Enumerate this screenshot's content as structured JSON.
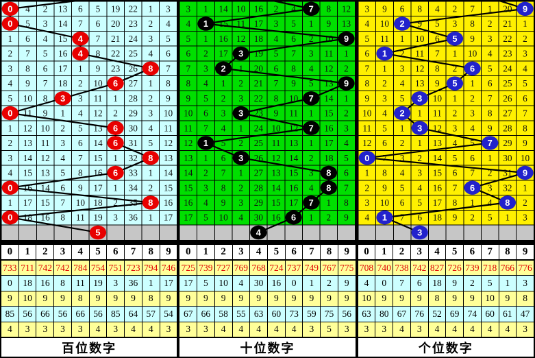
{
  "chart_data": {
    "type": "table",
    "title": "3D lottery digit trend chart (hundreds / tens / units)",
    "digit_header": [
      "0",
      "1",
      "2",
      "3",
      "4",
      "5",
      "6",
      "7",
      "8",
      "9"
    ],
    "colors": {
      "hundreds_bg": "#CCFFFF",
      "tens_bg": "#00DF00",
      "units_bg": "#FFF000",
      "pending_row_bg": "#C6C6C6",
      "grid_line": "#000000",
      "trend_line": "#000000",
      "red_ball": "#E80000",
      "black_ball": "#000000",
      "blue_ball": "#2222CC",
      "stats_yellow": "#FFFF99",
      "stats_cyan": "#CCFFFF",
      "stats_red_text": "#E00000"
    },
    "panels": [
      {
        "name": "hundreds",
        "footer_label": "百位数字",
        "bg": "#CCFFFF",
        "ball_color": "#E80000",
        "prev_col": 7,
        "rows": [
          {
            "ball": 0,
            "cells": [
              "0",
              "4",
              "2",
              "13",
              "6",
              "5",
              "19",
              "22",
              "1",
              "3"
            ]
          },
          {
            "ball": 0,
            "cells": [
              "0",
              "5",
              "3",
              "14",
              "7",
              "6",
              "20",
              "23",
              "2",
              "4"
            ]
          },
          {
            "ball": 4,
            "cells": [
              "1",
              "6",
              "4",
              "15",
              "4",
              "7",
              "21",
              "24",
              "3",
              "5"
            ]
          },
          {
            "ball": 4,
            "cells": [
              "2",
              "7",
              "5",
              "16",
              "4",
              "8",
              "22",
              "25",
              "4",
              "6"
            ]
          },
          {
            "ball": 8,
            "cells": [
              "3",
              "8",
              "6",
              "17",
              "1",
              "9",
              "23",
              "26",
              "8",
              "7"
            ]
          },
          {
            "ball": 6,
            "cells": [
              "4",
              "9",
              "7",
              "18",
              "2",
              "10",
              "6",
              "27",
              "1",
              "8"
            ]
          },
          {
            "ball": 3,
            "cells": [
              "5",
              "10",
              "8",
              "3",
              "3",
              "11",
              "1",
              "28",
              "2",
              "9"
            ]
          },
          {
            "ball": 0,
            "cells": [
              "0",
              "11",
              "9",
              "1",
              "4",
              "12",
              "2",
              "29",
              "3",
              "10"
            ]
          },
          {
            "ball": 6,
            "cells": [
              "1",
              "12",
              "10",
              "2",
              "5",
              "13",
              "6",
              "30",
              "4",
              "11"
            ]
          },
          {
            "ball": 6,
            "cells": [
              "2",
              "13",
              "11",
              "3",
              "6",
              "14",
              "6",
              "31",
              "5",
              "12"
            ]
          },
          {
            "ball": 8,
            "cells": [
              "3",
              "14",
              "12",
              "4",
              "7",
              "15",
              "1",
              "32",
              "8",
              "13"
            ]
          },
          {
            "ball": 6,
            "cells": [
              "4",
              "15",
              "13",
              "5",
              "8",
              "16",
              "6",
              "33",
              "1",
              "14"
            ]
          },
          {
            "ball": 0,
            "cells": [
              "0",
              "16",
              "14",
              "6",
              "9",
              "17",
              "1",
              "34",
              "2",
              "15"
            ]
          },
          {
            "ball": 8,
            "cells": [
              "1",
              "17",
              "15",
              "7",
              "10",
              "18",
              "2",
              "35",
              "8",
              "16"
            ]
          },
          {
            "ball": 0,
            "cells": [
              "0",
              "18",
              "16",
              "8",
              "11",
              "19",
              "3",
              "36",
              "1",
              "17"
            ]
          }
        ],
        "next_ball": {
          "col": 5,
          "value": "5"
        },
        "stats": [
          {
            "bg": "#FFFF99",
            "fg": "#E00000",
            "values": [
              "733",
              "711",
              "742",
              "742",
              "784",
              "754",
              "751",
              "723",
              "794",
              "746"
            ]
          },
          {
            "bg": "#CCFFFF",
            "fg": "#000000",
            "values": [
              "0",
              "18",
              "16",
              "8",
              "11",
              "19",
              "3",
              "36",
              "1",
              "17"
            ]
          },
          {
            "bg": "#FFFF99",
            "fg": "#000000",
            "values": [
              "9",
              "10",
              "9",
              "9",
              "8",
              "9",
              "9",
              "9",
              "8",
              "9"
            ]
          },
          {
            "bg": "#CCFFFF",
            "fg": "#000000",
            "values": [
              "85",
              "56",
              "66",
              "56",
              "66",
              "56",
              "85",
              "64",
              "57",
              "54"
            ]
          },
          {
            "bg": "#FFFF99",
            "fg": "#000000",
            "values": [
              "4",
              "3",
              "3",
              "3",
              "3",
              "4",
              "3",
              "4",
              "4",
              "3"
            ]
          }
        ]
      },
      {
        "name": "tens",
        "footer_label": "十位数字",
        "bg": "#00DF00",
        "ball_color": "#000000",
        "prev_col": 3,
        "rows": [
          {
            "ball": 7,
            "cells": [
              "3",
              "1",
              "14",
              "10",
              "16",
              "2",
              "4",
              "7",
              "8",
              "12"
            ]
          },
          {
            "ball": 1,
            "cells": [
              "4",
              "1",
              "15",
              "11",
              "17",
              "3",
              "5",
              "1",
              "9",
              "13"
            ]
          },
          {
            "ball": 9,
            "cells": [
              "5",
              "1",
              "16",
              "12",
              "18",
              "4",
              "6",
              "2",
              "10",
              "9"
            ]
          },
          {
            "ball": 3,
            "cells": [
              "6",
              "2",
              "17",
              "3",
              "19",
              "5",
              "7",
              "3",
              "11",
              "1"
            ]
          },
          {
            "ball": 2,
            "cells": [
              "7",
              "3",
              "2",
              "1",
              "20",
              "6",
              "8",
              "4",
              "12",
              "2"
            ]
          },
          {
            "ball": 9,
            "cells": [
              "8",
              "4",
              "1",
              "2",
              "21",
              "7",
              "9",
              "5",
              "13",
              "9"
            ]
          },
          {
            "ball": 7,
            "cells": [
              "9",
              "5",
              "2",
              "3",
              "22",
              "8",
              "10",
              "7",
              "14",
              "1"
            ]
          },
          {
            "ball": 3,
            "cells": [
              "10",
              "6",
              "3",
              "3",
              "23",
              "9",
              "11",
              "1",
              "15",
              "2"
            ]
          },
          {
            "ball": 7,
            "cells": [
              "11",
              "7",
              "4",
              "1",
              "24",
              "10",
              "12",
              "7",
              "16",
              "3"
            ]
          },
          {
            "ball": 1,
            "cells": [
              "12",
              "1",
              "5",
              "2",
              "25",
              "11",
              "13",
              "1",
              "17",
              "4"
            ]
          },
          {
            "ball": 3,
            "cells": [
              "13",
              "1",
              "6",
              "3",
              "26",
              "12",
              "14",
              "2",
              "18",
              "5"
            ]
          },
          {
            "ball": 8,
            "cells": [
              "14",
              "2",
              "7",
              "1",
              "27",
              "13",
              "15",
              "3",
              "8",
              "6"
            ]
          },
          {
            "ball": 8,
            "cells": [
              "15",
              "3",
              "8",
              "2",
              "28",
              "14",
              "16",
              "4",
              "8",
              "7"
            ]
          },
          {
            "ball": 7,
            "cells": [
              "16",
              "4",
              "9",
              "3",
              "29",
              "15",
              "17",
              "7",
              "1",
              "8"
            ]
          },
          {
            "ball": 6,
            "cells": [
              "17",
              "5",
              "10",
              "4",
              "30",
              "16",
              "6",
              "1",
              "2",
              "9"
            ]
          }
        ],
        "next_ball": {
          "col": 4,
          "value": "4"
        },
        "stats": [
          {
            "bg": "#FFFF99",
            "fg": "#E00000",
            "values": [
              "725",
              "739",
              "727",
              "769",
              "768",
              "724",
              "737",
              "749",
              "767",
              "775"
            ]
          },
          {
            "bg": "#CCFFFF",
            "fg": "#000000",
            "values": [
              "17",
              "5",
              "10",
              "4",
              "30",
              "16",
              "0",
              "1",
              "2",
              "9"
            ]
          },
          {
            "bg": "#FFFF99",
            "fg": "#000000",
            "values": [
              "9",
              "9",
              "9",
              "9",
              "9",
              "9",
              "9",
              "9",
              "9",
              "9"
            ]
          },
          {
            "bg": "#CCFFFF",
            "fg": "#000000",
            "values": [
              "67",
              "66",
              "58",
              "55",
              "63",
              "60",
              "73",
              "59",
              "75",
              "56"
            ]
          },
          {
            "bg": "#FFFF99",
            "fg": "#000000",
            "values": [
              "3",
              "3",
              "4",
              "4",
              "4",
              "4",
              "4",
              "3",
              "5",
              "3"
            ]
          }
        ]
      },
      {
        "name": "units",
        "footer_label": "个位数字",
        "bg": "#FFF000",
        "ball_color": "#2222CC",
        "prev_col": 6.3,
        "rows": [
          {
            "ball": 9,
            "cells": [
              "3",
              "9",
              "6",
              "8",
              "4",
              "2",
              "7",
              "1",
              "20",
              "9"
            ]
          },
          {
            "ball": 2,
            "cells": [
              "4",
              "10",
              "2",
              "9",
              "5",
              "3",
              "8",
              "2",
              "21",
              "1"
            ]
          },
          {
            "ball": 5,
            "cells": [
              "5",
              "11",
              "1",
              "10",
              "6",
              "5",
              "9",
              "3",
              "22",
              "2"
            ]
          },
          {
            "ball": 1,
            "cells": [
              "6",
              "1",
              "2",
              "11",
              "7",
              "1",
              "10",
              "4",
              "23",
              "3"
            ]
          },
          {
            "ball": 6,
            "cells": [
              "7",
              "1",
              "3",
              "12",
              "8",
              "2",
              "6",
              "5",
              "24",
              "4"
            ]
          },
          {
            "ball": 5,
            "cells": [
              "8",
              "2",
              "4",
              "13",
              "9",
              "5",
              "1",
              "6",
              "25",
              "5"
            ]
          },
          {
            "ball": 3,
            "cells": [
              "9",
              "3",
              "5",
              "3",
              "10",
              "1",
              "2",
              "7",
              "26",
              "6"
            ]
          },
          {
            "ball": 2,
            "cells": [
              "10",
              "4",
              "2",
              "1",
              "11",
              "2",
              "3",
              "8",
              "27",
              "7"
            ]
          },
          {
            "ball": 3,
            "cells": [
              "11",
              "5",
              "1",
              "3",
              "12",
              "3",
              "4",
              "9",
              "28",
              "8"
            ]
          },
          {
            "ball": 7,
            "cells": [
              "12",
              "6",
              "2",
              "1",
              "13",
              "4",
              "5",
              "7",
              "29",
              "9"
            ]
          },
          {
            "ball": 0,
            "cells": [
              "0",
              "7",
              "3",
              "2",
              "14",
              "5",
              "6",
              "1",
              "30",
              "10"
            ]
          },
          {
            "ball": 9,
            "cells": [
              "1",
              "8",
              "4",
              "3",
              "15",
              "6",
              "7",
              "2",
              "31",
              "9"
            ]
          },
          {
            "ball": 6,
            "cells": [
              "2",
              "9",
              "5",
              "4",
              "16",
              "7",
              "6",
              "3",
              "32",
              "1"
            ]
          },
          {
            "ball": 8,
            "cells": [
              "3",
              "10",
              "6",
              "5",
              "17",
              "8",
              "1",
              "4",
              "8",
              "2"
            ]
          },
          {
            "ball": 1,
            "cells": [
              "4",
              "1",
              "7",
              "6",
              "18",
              "9",
              "2",
              "5",
              "1",
              "3"
            ]
          }
        ],
        "next_ball": {
          "col": 3,
          "value": "3"
        },
        "stats": [
          {
            "bg": "#FFFF99",
            "fg": "#E00000",
            "values": [
              "708",
              "740",
              "738",
              "742",
              "827",
              "726",
              "739",
              "718",
              "766",
              "776"
            ]
          },
          {
            "bg": "#CCFFFF",
            "fg": "#000000",
            "values": [
              "4",
              "0",
              "7",
              "6",
              "18",
              "9",
              "2",
              "5",
              "1",
              "3"
            ]
          },
          {
            "bg": "#FFFF99",
            "fg": "#000000",
            "values": [
              "10",
              "9",
              "9",
              "9",
              "8",
              "9",
              "9",
              "10",
              "9",
              "8"
            ]
          },
          {
            "bg": "#CCFFFF",
            "fg": "#000000",
            "values": [
              "63",
              "80",
              "67",
              "76",
              "52",
              "69",
              "74",
              "60",
              "61",
              "47"
            ]
          },
          {
            "bg": "#FFFF99",
            "fg": "#000000",
            "values": [
              "3",
              "3",
              "4",
              "3",
              "4",
              "4",
              "4",
              "4",
              "4",
              "3"
            ]
          }
        ]
      }
    ]
  }
}
